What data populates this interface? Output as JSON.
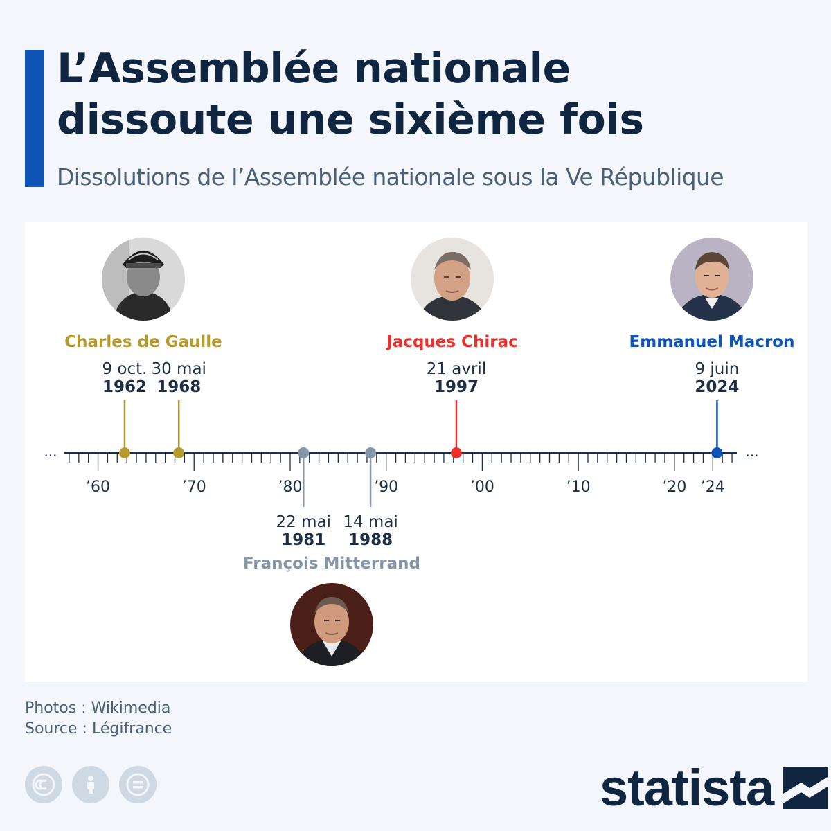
{
  "header": {
    "title": "L’Assemblée nationale\ndissoute une sixième fois",
    "subtitle": "Dissolutions de l’Assemblée nationale sous la Ve République"
  },
  "chart_data": {
    "type": "timeline",
    "xlim": [
      1956.5,
      2026.5
    ],
    "ellipsis": "...",
    "tick_labels": [
      {
        "year": 1960,
        "label": "’60"
      },
      {
        "year": 1970,
        "label": "’70"
      },
      {
        "year": 1980,
        "label": "’80"
      },
      {
        "year": 1990,
        "label": "’90"
      },
      {
        "year": 2000,
        "label": "’00"
      },
      {
        "year": 2010,
        "label": "’10"
      },
      {
        "year": 2020,
        "label": "’20"
      },
      {
        "year": 2024,
        "label": "’24"
      }
    ],
    "presidents": [
      {
        "id": "de-gaulle",
        "name": "Charles de Gaulle",
        "color": "#b59a2d",
        "side": "above",
        "photo_icon": "de-gaulle-portrait-icon"
      },
      {
        "id": "mitterrand",
        "name": "François Mitterrand",
        "color": "#8497a8",
        "side": "below",
        "photo_icon": "mitterrand-portrait-icon"
      },
      {
        "id": "chirac",
        "name": "Jacques Chirac",
        "color": "#e8302c",
        "side": "above",
        "photo_icon": "chirac-portrait-icon"
      },
      {
        "id": "macron",
        "name": "Emmanuel Macron",
        "color": "#0e55b5",
        "side": "above",
        "photo_icon": "macron-portrait-icon"
      }
    ],
    "events": [
      {
        "year": 1962.77,
        "date": "9 oct.",
        "year_label": "1962",
        "president": "de-gaulle",
        "side": "above"
      },
      {
        "year": 1968.41,
        "date": "30 mai",
        "year_label": "1968",
        "president": "de-gaulle",
        "side": "above"
      },
      {
        "year": 1981.39,
        "date": "22 mai",
        "year_label": "1981",
        "president": "mitterrand",
        "side": "below"
      },
      {
        "year": 1988.37,
        "date": "14 mai",
        "year_label": "1988",
        "president": "mitterrand",
        "side": "below"
      },
      {
        "year": 1997.3,
        "date": "21 avril",
        "year_label": "1997",
        "president": "chirac",
        "side": "above"
      },
      {
        "year": 2024.44,
        "date": "9 juin",
        "year_label": "2024",
        "president": "macron",
        "side": "above"
      }
    ]
  },
  "footer": {
    "photos": "Photos : Wikimedia",
    "source": "Source : Légifrance",
    "license_icons": [
      "cc-icon",
      "attribution-icon",
      "no-derivatives-icon"
    ],
    "brand": "statista"
  }
}
